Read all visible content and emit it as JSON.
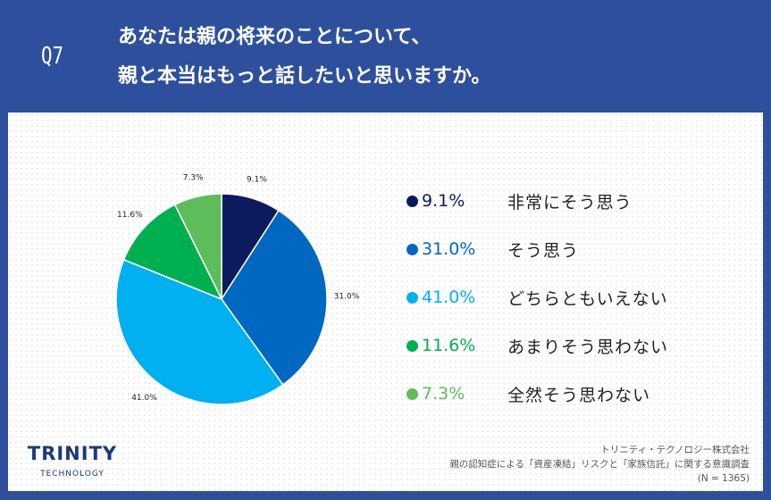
{
  "header": {
    "question_no": "Q7",
    "title_line1": "あなたは親の将来のことについて、",
    "title_line2": "親と本当はもっと話したいと思いますか。"
  },
  "chart_data": {
    "type": "pie",
    "categories": [
      "非常にそう思う",
      "そう思う",
      "どちらともいえない",
      "あまりそう思わない",
      "全然そう思わない"
    ],
    "values": [
      9.1,
      31.0,
      41.0,
      11.6,
      7.3
    ],
    "data_labels": [
      "9.1%",
      "31.0%",
      "41.0%",
      "11.6%",
      "7.3%"
    ],
    "legend_labels": [
      "9.1%",
      "31.0%",
      "41.0%",
      "11.6%",
      "7.3%"
    ],
    "colors": [
      "#0d1a5e",
      "#0068c0",
      "#00b0f0",
      "#00b050",
      "#5dbd5a"
    ],
    "legend": "right"
  },
  "footer": {
    "logo_main": "TRINITY",
    "logo_sub": "TECHNOLOGY",
    "source_line1": "トリニティ・テクノロジー株式会社",
    "source_line2": "親の認知症による「資産凍結」リスクと「家族信託」に関する意識調査",
    "source_line3": "(N = 1365)"
  }
}
